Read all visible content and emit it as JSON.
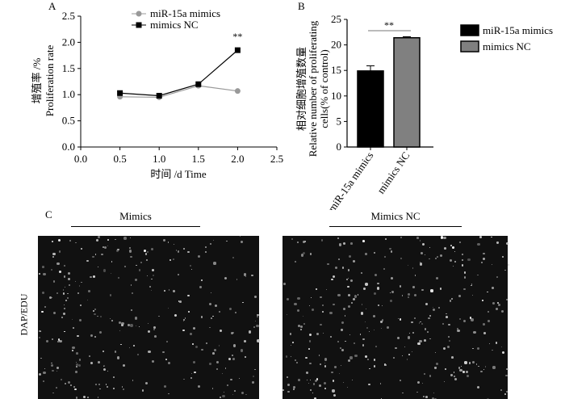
{
  "chart_data": [
    {
      "panel": "A",
      "type": "line",
      "xlabel": "时间 /d  Time",
      "ylabel_cn": "增殖率 /%",
      "ylabel": "Proliferation rate",
      "xlim": [
        0,
        2.5
      ],
      "ylim": [
        0,
        2.5
      ],
      "xticks": [
        "0.0",
        "0.5",
        "1.0",
        "1.5",
        "2.0",
        "2.5"
      ],
      "yticks": [
        "0.0",
        "0.5",
        "1.0",
        "1.5",
        "2.0",
        "2.5"
      ],
      "x": [
        0.5,
        1.0,
        1.5,
        2.0
      ],
      "series": [
        {
          "name": "miR-15a mimics",
          "values": [
            0.96,
            0.95,
            1.17,
            1.07
          ],
          "color": "#999999",
          "marker": "circle"
        },
        {
          "name": "mimics NC",
          "values": [
            1.03,
            0.98,
            1.2,
            1.85
          ],
          "errors": [
            0.02,
            0.02,
            0.02,
            0.05
          ],
          "color": "#000000",
          "marker": "square"
        }
      ],
      "annotation": "**",
      "legend": "top"
    },
    {
      "panel": "B",
      "type": "bar",
      "ylabel_cn": "相对细胞增殖数量",
      "ylabel": "Relative number of proliferating",
      "ylabel2": "cells(% of control)",
      "ylim": [
        0,
        25
      ],
      "yticks": [
        "0",
        "5",
        "10",
        "15",
        "20",
        "25"
      ],
      "categories": [
        "miR-15a mimics",
        "mimics NC"
      ],
      "values": [
        14.9,
        21.4
      ],
      "errors": [
        1.0,
        0.2
      ],
      "colors": [
        "#000000",
        "#808080"
      ],
      "annotation": "**",
      "legend": "right"
    }
  ],
  "panel_c": {
    "label": "C",
    "left_title": "Mimics",
    "right_title": "Mimics NC",
    "row_label": "DAP/EDU"
  }
}
